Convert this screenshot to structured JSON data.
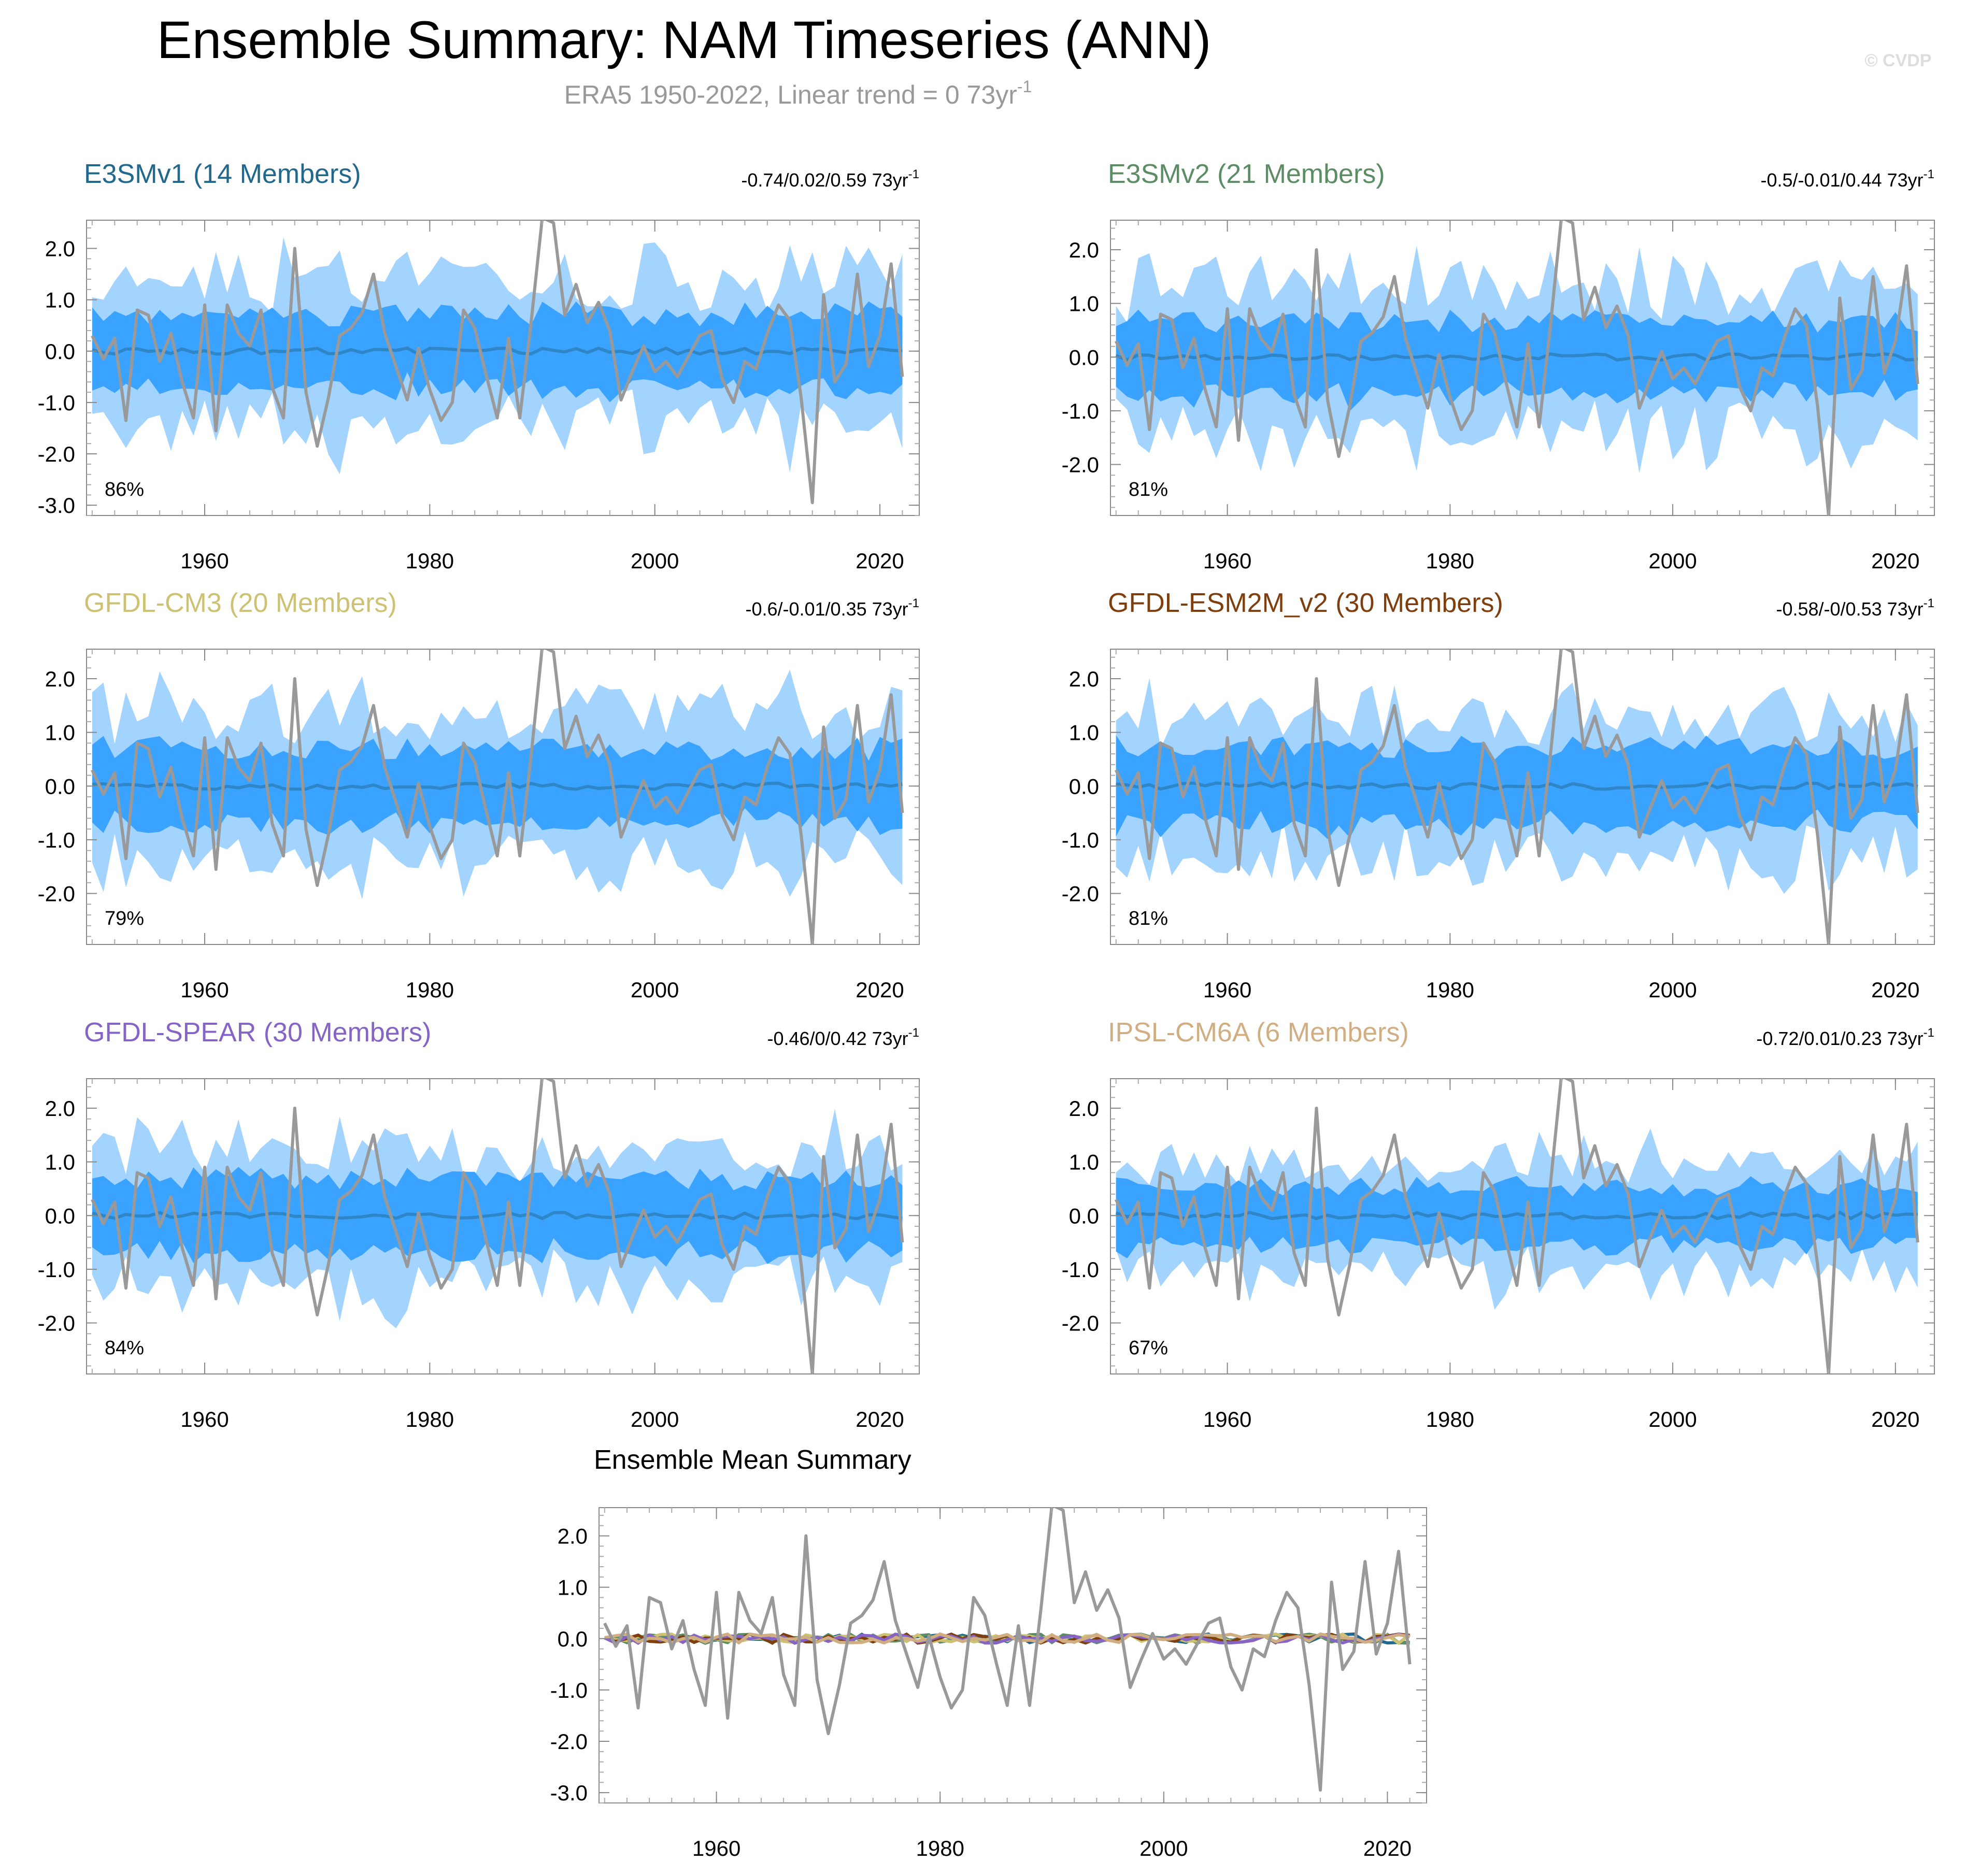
{
  "title": "Ensemble Summary: NAM Timeseries (ANN)",
  "subtitle": "ERA5 1950-2022, Linear trend = 0 73yr",
  "subtitle_sup": "-1",
  "watermark": "© CVDP",
  "colors": {
    "band_outer": "#a3d3ff",
    "band_inner": "#3aa2ff",
    "mean_line": "#2f86c7",
    "obs_line": "#999999"
  },
  "obs": {
    "years_start": 1950,
    "years_end": 2022,
    "values": [
      0.3,
      -0.15,
      0.25,
      -1.35,
      0.8,
      0.7,
      -0.2,
      0.35,
      -0.6,
      -1.3,
      0.9,
      -1.55,
      0.9,
      0.35,
      0.1,
      0.8,
      -0.7,
      -1.3,
      2.0,
      -0.8,
      -1.85,
      -0.9,
      0.3,
      0.45,
      0.75,
      1.5,
      0.35,
      -0.3,
      -0.95,
      0.05,
      -0.75,
      -1.35,
      -1.0,
      0.8,
      0.45,
      -0.45,
      -1.3,
      0.25,
      -1.3,
      0.55,
      2.6,
      2.5,
      0.7,
      1.3,
      0.55,
      0.95,
      0.4,
      -0.95,
      -0.4,
      0.1,
      -0.4,
      -0.2,
      -0.5,
      -0.1,
      0.3,
      0.4,
      -0.55,
      -1.0,
      -0.2,
      -0.35,
      0.35,
      0.9,
      0.6,
      -0.9,
      -2.95,
      1.1,
      -0.6,
      -0.25,
      1.5,
      -0.3,
      0.3,
      1.7,
      -0.5
    ]
  },
  "chart_data": [
    {
      "type": "area",
      "name": "E3SMv1 (14 Members)",
      "color": "#21688c",
      "trend_text": "-0.74/0.02/0.59 73yr",
      "trend_sup": "-1",
      "percent": "86%",
      "ylim": [
        -3.2,
        2.55
      ],
      "yticks": [
        2.0,
        1.0,
        0.0,
        -1.0,
        -2.0,
        -3.0
      ],
      "xticks": [
        1960,
        1980,
        2000,
        2020
      ],
      "years": [
        1950,
        2022
      ],
      "band_pct": [
        [
          10,
          90
        ],
        [
          2.5,
          97.5
        ]
      ],
      "outer_spread": 1.45,
      "inner_spread": 0.72
    },
    {
      "type": "area",
      "name": "E3SMv2 (21 Members)",
      "color": "#5b8c64",
      "trend_text": "-0.5/-0.01/0.44 73yr",
      "trend_sup": "-1",
      "percent": "81%",
      "ylim": [
        -2.95,
        2.55
      ],
      "yticks": [
        2.0,
        1.0,
        0.0,
        -1.0,
        -2.0
      ],
      "xticks": [
        1960,
        1980,
        2000,
        2020
      ],
      "years": [
        1950,
        2022
      ],
      "band_pct": [
        [
          10,
          90
        ],
        [
          2.5,
          97.5
        ]
      ],
      "outer_spread": 1.35,
      "inner_spread": 0.68
    },
    {
      "type": "area",
      "name": "GFDL-CM3 (20 Members)",
      "color": "#cdc274",
      "trend_text": "-0.6/-0.01/0.35 73yr",
      "trend_sup": "-1",
      "percent": "79%",
      "ylim": [
        -2.95,
        2.55
      ],
      "yticks": [
        2.0,
        1.0,
        0.0,
        -1.0,
        -2.0
      ],
      "xticks": [
        1960,
        1980,
        2000,
        2020
      ],
      "years": [
        1950,
        2022
      ],
      "band_pct": [
        [
          10,
          90
        ],
        [
          2.5,
          97.5
        ]
      ],
      "outer_spread": 1.4,
      "inner_spread": 0.7
    },
    {
      "type": "area",
      "name": "GFDL-ESM2M_v2 (30 Members)",
      "color": "#7f3e0d",
      "trend_text": "-0.58/-0/0.53 73yr",
      "trend_sup": "-1",
      "percent": "81%",
      "ylim": [
        -2.95,
        2.55
      ],
      "yticks": [
        2.0,
        1.0,
        0.0,
        -1.0,
        -2.0
      ],
      "xticks": [
        1960,
        1980,
        2000,
        2020
      ],
      "years": [
        1950,
        2022
      ],
      "band_pct": [
        [
          10,
          90
        ],
        [
          2.5,
          97.5
        ]
      ],
      "outer_spread": 1.3,
      "inner_spread": 0.7
    },
    {
      "type": "area",
      "name": "GFDL-SPEAR (30 Members)",
      "color": "#8564c6",
      "trend_text": "-0.46/0/0.42 73yr",
      "trend_sup": "-1",
      "percent": "84%",
      "ylim": [
        -2.95,
        2.55
      ],
      "yticks": [
        2.0,
        1.0,
        0.0,
        -1.0,
        -2.0
      ],
      "xticks": [
        1960,
        1980,
        2000,
        2020
      ],
      "years": [
        1950,
        2022
      ],
      "band_pct": [
        [
          10,
          90
        ],
        [
          2.5,
          97.5
        ]
      ],
      "outer_spread": 1.3,
      "inner_spread": 0.68
    },
    {
      "type": "area",
      "name": "IPSL-CM6A (6 Members)",
      "color": "#d1ad82",
      "trend_text": "-0.72/0.01/0.23 73yr",
      "trend_sup": "-1",
      "percent": "67%",
      "ylim": [
        -2.95,
        2.55
      ],
      "yticks": [
        2.0,
        1.0,
        0.0,
        -1.0,
        -2.0
      ],
      "xticks": [
        1960,
        1980,
        2000,
        2020
      ],
      "years": [
        1950,
        2022
      ],
      "band_pct": [
        [
          10,
          90
        ],
        [
          2.5,
          97.5
        ]
      ],
      "outer_spread": 1.1,
      "inner_spread": 0.55
    },
    {
      "type": "line",
      "name": "Ensemble Mean Summary",
      "ylim": [
        -3.2,
        2.55
      ],
      "yticks": [
        2.0,
        1.0,
        0.0,
        -1.0,
        -2.0,
        -3.0
      ],
      "xticks": [
        1960,
        1980,
        2000,
        2020
      ],
      "years": [
        1950,
        2022
      ],
      "series_colors": [
        "#21688c",
        "#5b8c64",
        "#cdc274",
        "#7f3e0d",
        "#8564c6",
        "#d1ad82"
      ]
    }
  ]
}
